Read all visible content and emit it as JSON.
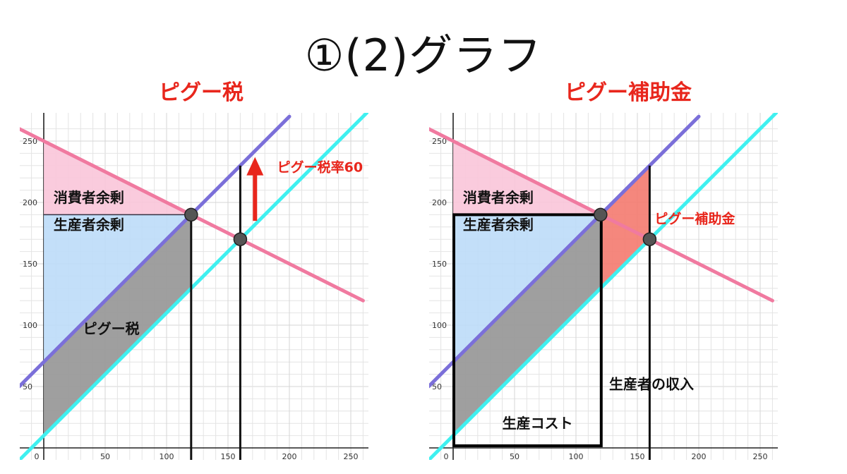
{
  "title": "①(2)グラフ",
  "colors": {
    "demand": "#f07aa0",
    "supply_private": "#7b6fd9",
    "supply_social": "#3ff0f0",
    "consumer_surplus": "#f9c5d9",
    "producer_surplus": "#bcdcf8",
    "tax_region": "#9a9a9a",
    "subsidy_region": "#f47a6f",
    "red_text": "#e8261c",
    "grid": "#e4e4e4"
  },
  "chart_data": [
    {
      "type": "line",
      "title": "ピグー税",
      "x_ticks": [
        0,
        50,
        100,
        150,
        200,
        250
      ],
      "y_ticks": [
        50,
        100,
        150,
        200,
        250
      ],
      "xlim": [
        0,
        250
      ],
      "ylim": [
        0,
        250
      ],
      "grid": true,
      "series": [
        {
          "role": "demand",
          "x": [
            -20,
            260
          ],
          "y": [
            260,
            120
          ]
        },
        {
          "role": "supply_private",
          "x": [
            -20,
            200
          ],
          "y": [
            50,
            270
          ]
        },
        {
          "role": "supply_social",
          "x": [
            -20,
            270
          ],
          "y": [
            -10,
            280
          ]
        }
      ],
      "points": [
        {
          "x": 120,
          "y": 190
        },
        {
          "x": 160,
          "y": 170
        }
      ],
      "vlines": [
        {
          "x": 120,
          "y_top": 190
        },
        {
          "x": 160,
          "y_top": 230
        }
      ],
      "hline_y": 190,
      "arrow": {
        "x": 172,
        "y_from": 185,
        "y_to": 237
      },
      "labels": {
        "consumer_surplus": "消費者余剰",
        "producer_surplus": "生産者余剰",
        "tax_region": "ピグー税",
        "tax_rate": "ピグー税率60"
      }
    },
    {
      "type": "line",
      "title": "ピグー補助金",
      "x_ticks": [
        0,
        50,
        100,
        150,
        200,
        250
      ],
      "y_ticks": [
        50,
        100,
        150,
        200,
        250
      ],
      "xlim": [
        0,
        250
      ],
      "ylim": [
        0,
        250
      ],
      "grid": true,
      "series": [
        {
          "role": "demand",
          "x": [
            -20,
            260
          ],
          "y": [
            260,
            120
          ]
        },
        {
          "role": "supply_private",
          "x": [
            -20,
            200
          ],
          "y": [
            50,
            270
          ]
        },
        {
          "role": "supply_social",
          "x": [
            -20,
            270
          ],
          "y": [
            -10,
            280
          ]
        }
      ],
      "points": [
        {
          "x": 120,
          "y": 190
        },
        {
          "x": 160,
          "y": 170
        }
      ],
      "vlines": [
        {
          "x": 160,
          "y_top": 230
        }
      ],
      "box": {
        "x0": 0,
        "x1": 120,
        "y0": 0,
        "y1": 190
      },
      "labels": {
        "consumer_surplus": "消費者余剰",
        "producer_surplus": "生産者余剰",
        "subsidy": "ピグー補助金",
        "producer_income": "生産者の収入",
        "production_cost": "生産コスト"
      }
    }
  ]
}
